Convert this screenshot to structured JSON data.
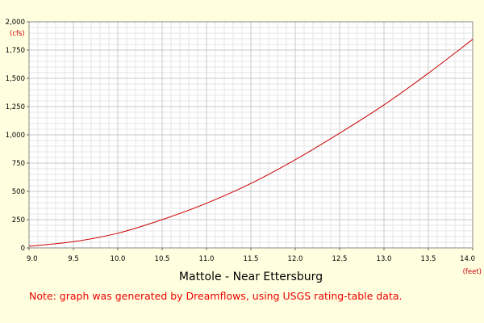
{
  "chart_data": {
    "type": "line",
    "title": "Mattole - Near Ettersburg",
    "note": "Note: graph was generated by Dreamflows, using USGS rating-table data.",
    "x_unit": "(feet)",
    "y_unit": "(cfs)",
    "xlim": [
      9.0,
      14.0
    ],
    "ylim": [
      0,
      2000
    ],
    "x_ticks": [
      "9.0",
      "9.5",
      "10.0",
      "10.5",
      "11.0",
      "11.5",
      "12.0",
      "12.5",
      "13.0",
      "13.5",
      "14.0"
    ],
    "y_ticks": [
      "0",
      "250",
      "500",
      "750",
      "1,000",
      "1,250",
      "1,500",
      "1,750",
      "2,000"
    ],
    "grid": true,
    "series_color": "#cc0000",
    "series": [
      {
        "x": [
          9.0,
          9.5,
          10.0,
          10.5,
          11.0,
          11.5,
          12.0,
          12.5,
          13.0,
          13.5,
          14.0
        ],
        "y": [
          15,
          55,
          130,
          250,
          395,
          570,
          780,
          1015,
          1265,
          1545,
          1845
        ]
      }
    ]
  }
}
